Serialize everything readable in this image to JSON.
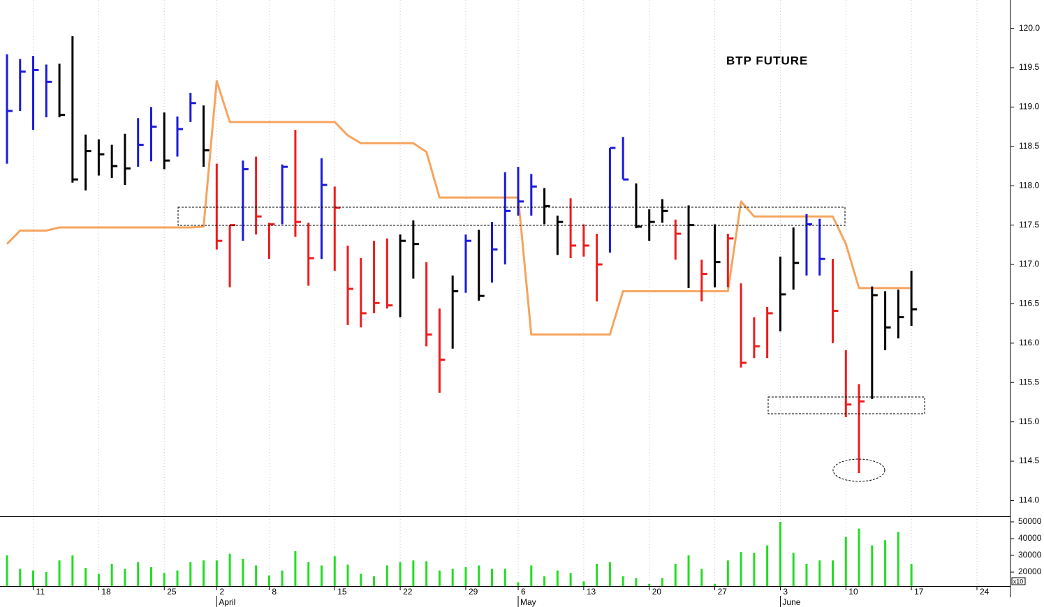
{
  "chart_data": [
    {
      "type": "ohlc",
      "title": "BTP FUTURE",
      "categories": [
        null,
        null,
        "11",
        null,
        null,
        null,
        null,
        "18",
        null,
        null,
        null,
        null,
        "25",
        null,
        null,
        null,
        "2",
        null,
        null,
        null,
        "8",
        null,
        null,
        null,
        null,
        "15",
        null,
        null,
        null,
        null,
        "22",
        null,
        null,
        null,
        null,
        "29",
        null,
        null,
        null,
        "6",
        null,
        null,
        null,
        null,
        "13",
        null,
        null,
        null,
        null,
        "20",
        null,
        null,
        null,
        null,
        "27",
        null,
        null,
        null,
        null,
        "3",
        null,
        null,
        null,
        null,
        "10",
        null,
        null,
        null,
        null,
        "17",
        null,
        null,
        null,
        null,
        "24",
        null,
        null
      ],
      "months": [
        null,
        null,
        null,
        null,
        null,
        null,
        null,
        null,
        null,
        null,
        null,
        null,
        null,
        null,
        null,
        null,
        "April",
        null,
        null,
        null,
        null,
        null,
        null,
        null,
        null,
        null,
        null,
        null,
        null,
        null,
        null,
        null,
        null,
        null,
        null,
        null,
        null,
        null,
        null,
        "May",
        null,
        null,
        null,
        null,
        null,
        null,
        null,
        null,
        null,
        null,
        null,
        null,
        null,
        null,
        null,
        null,
        null,
        null,
        null,
        "June",
        null,
        null,
        null,
        null,
        null,
        null,
        null,
        null,
        null,
        null,
        null,
        null,
        null,
        null,
        null,
        null,
        null
      ],
      "high": [
        119.67,
        119.61,
        119.65,
        119.54,
        119.55,
        119.9,
        118.65,
        118.59,
        118.52,
        118.66,
        118.86,
        119.0,
        118.93,
        118.88,
        119.18,
        119.02,
        118.28,
        117.5,
        118.32,
        118.37,
        117.53,
        118.27,
        118.71,
        117.53,
        118.35,
        117.99,
        117.24,
        117.08,
        117.3,
        117.33,
        117.38,
        117.56,
        117.03,
        116.44,
        116.86,
        117.38,
        117.44,
        117.54,
        118.17,
        118.24,
        118.15,
        117.97,
        117.62,
        117.84,
        117.51,
        117.39,
        118.48,
        118.62,
        118.03,
        117.7,
        117.83,
        117.57,
        117.75,
        117.06,
        117.51,
        117.39,
        116.76,
        116.33,
        116.46,
        117.1,
        117.47,
        117.64,
        117.58,
        117.07,
        115.91,
        115.48,
        116.72,
        116.66,
        116.68,
        116.92,
        null,
        null,
        null,
        null,
        null,
        null,
        null
      ],
      "low": [
        118.28,
        118.95,
        118.71,
        118.87,
        118.87,
        118.04,
        117.94,
        118.13,
        118.1,
        118.01,
        118.24,
        118.31,
        118.21,
        118.37,
        118.81,
        118.24,
        117.19,
        116.71,
        117.3,
        117.38,
        117.07,
        117.51,
        117.35,
        116.73,
        117.07,
        116.92,
        116.23,
        116.2,
        116.38,
        116.44,
        116.33,
        116.82,
        115.96,
        115.37,
        115.93,
        116.64,
        116.54,
        116.77,
        117.0,
        117.62,
        117.62,
        117.51,
        117.12,
        117.08,
        117.1,
        116.53,
        117.15,
        118.08,
        117.46,
        117.3,
        117.53,
        117.06,
        116.7,
        116.53,
        116.71,
        116.71,
        115.69,
        115.81,
        115.81,
        116.15,
        116.68,
        116.86,
        116.86,
        116.0,
        115.06,
        114.35,
        115.29,
        115.91,
        116.06,
        116.22,
        null,
        null,
        null,
        null,
        null,
        null,
        null
      ],
      "close": [
        118.95,
        119.45,
        119.47,
        119.32,
        118.9,
        118.08,
        118.44,
        118.4,
        118.25,
        118.22,
        118.52,
        118.75,
        118.32,
        118.72,
        119.05,
        118.45,
        117.3,
        117.5,
        118.21,
        117.61,
        117.51,
        118.24,
        117.54,
        117.08,
        118.01,
        117.72,
        116.69,
        116.38,
        116.51,
        116.48,
        117.3,
        117.26,
        116.11,
        115.79,
        116.66,
        117.3,
        116.6,
        117.19,
        117.68,
        117.8,
        117.99,
        117.74,
        117.54,
        117.24,
        117.24,
        117.0,
        118.48,
        118.08,
        117.48,
        117.54,
        117.68,
        117.39,
        117.5,
        116.88,
        117.03,
        117.33,
        115.75,
        115.96,
        116.38,
        116.62,
        117.02,
        117.51,
        117.07,
        116.41,
        115.22,
        115.26,
        116.61,
        116.2,
        116.33,
        116.43,
        null,
        null,
        null,
        null,
        null,
        null,
        null
      ],
      "bar_colors": [
        "#1a1adb",
        "#1a1adb",
        "#1a1adb",
        "#1a1adb",
        "#000000",
        "#000000",
        "#000000",
        "#000000",
        "#000000",
        "#000000",
        "#1a1adb",
        "#1a1adb",
        "#000000",
        "#1a1adb",
        "#1a1adb",
        "#000000",
        "#ee1c1c",
        "#ee1c1c",
        "#1a1adb",
        "#ee1c1c",
        "#ee1c1c",
        "#1a1adb",
        "#ee1c1c",
        "#ee1c1c",
        "#1a1adb",
        "#ee1c1c",
        "#ee1c1c",
        "#ee1c1c",
        "#ee1c1c",
        "#ee1c1c",
        "#000000",
        "#000000",
        "#ee1c1c",
        "#ee1c1c",
        "#000000",
        "#1a1adb",
        "#000000",
        "#1a1adb",
        "#1a1adb",
        "#1a1adb",
        "#1a1adb",
        "#000000",
        "#000000",
        "#ee1c1c",
        "#ee1c1c",
        "#ee1c1c",
        "#1a1adb",
        "#1a1adb",
        "#000000",
        "#000000",
        "#000000",
        "#ee1c1c",
        "#000000",
        "#ee1c1c",
        "#000000",
        "#ee1c1c",
        "#ee1c1c",
        "#ee1c1c",
        "#ee1c1c",
        "#000000",
        "#000000",
        "#1a1adb",
        "#1a1adb",
        "#ee1c1c",
        "#ee1c1c",
        "#ee1c1c",
        "#000000",
        "#000000",
        "#000000",
        "#000000",
        null,
        null,
        null,
        null,
        null,
        null,
        null
      ],
      "overlay": {
        "type": "line",
        "color": "#f6a45e",
        "values": [
          117.26,
          117.43,
          117.43,
          117.43,
          117.47,
          117.47,
          117.47,
          117.47,
          117.47,
          117.47,
          117.47,
          117.47,
          117.47,
          117.47,
          117.47,
          117.48,
          119.33,
          118.81,
          118.81,
          118.81,
          118.81,
          118.81,
          118.81,
          118.81,
          118.81,
          118.81,
          118.64,
          118.54,
          118.54,
          118.54,
          118.54,
          118.54,
          118.43,
          117.85,
          117.85,
          117.85,
          117.85,
          117.85,
          117.85,
          117.85,
          116.11,
          116.11,
          116.11,
          116.11,
          116.11,
          116.11,
          116.11,
          116.66,
          116.66,
          116.66,
          116.66,
          116.66,
          116.66,
          116.66,
          116.66,
          116.66,
          117.8,
          117.61,
          117.61,
          117.61,
          117.61,
          117.61,
          117.61,
          117.61,
          117.26,
          116.7,
          116.7,
          116.7,
          116.7,
          116.7,
          null,
          null,
          null,
          null,
          null,
          null,
          null
        ]
      },
      "ylim": [
        113.8,
        120.36
      ],
      "yticks": [
        {
          "value": 114,
          "label": "114.0"
        },
        {
          "value": 114.5,
          "label": "114.5"
        },
        {
          "value": 115,
          "label": "115.0"
        },
        {
          "value": 115.5,
          "label": "115.5"
        },
        {
          "value": 116,
          "label": "116.0"
        },
        {
          "value": 116.5,
          "label": "116.5"
        },
        {
          "value": 117,
          "label": "117.0"
        },
        {
          "value": 117.5,
          "label": "117.5"
        },
        {
          "value": 118,
          "label": "118.0"
        },
        {
          "value": 118.5,
          "label": "118.5"
        },
        {
          "value": 119,
          "label": "119.0"
        },
        {
          "value": 119.5,
          "label": "119.5"
        },
        {
          "value": 120,
          "label": "120.0"
        }
      ],
      "grid": true
    },
    {
      "type": "bar",
      "color": "#22dd22",
      "multiplier_label": "x10",
      "values": [
        30000,
        22000,
        21000,
        20000,
        27000,
        30000,
        22500,
        19000,
        25000,
        22000,
        26000,
        23000,
        19500,
        21000,
        26000,
        27000,
        27000,
        31000,
        28000,
        24000,
        18000,
        21000,
        32500,
        26000,
        24000,
        29500,
        24500,
        19000,
        17500,
        24000,
        26000,
        27000,
        26500,
        21000,
        22000,
        23000,
        24000,
        22000,
        22000,
        14000,
        24000,
        17500,
        21000,
        19500,
        14500,
        25000,
        26000,
        17500,
        16500,
        13000,
        16500,
        25000,
        30000,
        22000,
        13000,
        27000,
        32000,
        31500,
        36000,
        50000,
        31500,
        25000,
        27000,
        27000,
        41000,
        46000,
        36000,
        39000,
        44000,
        25000,
        null,
        null,
        null,
        null,
        null,
        null,
        null
      ],
      "ylim": [
        11700,
        52900
      ],
      "yticks": [
        20000,
        30000,
        40000,
        50000
      ]
    }
  ]
}
